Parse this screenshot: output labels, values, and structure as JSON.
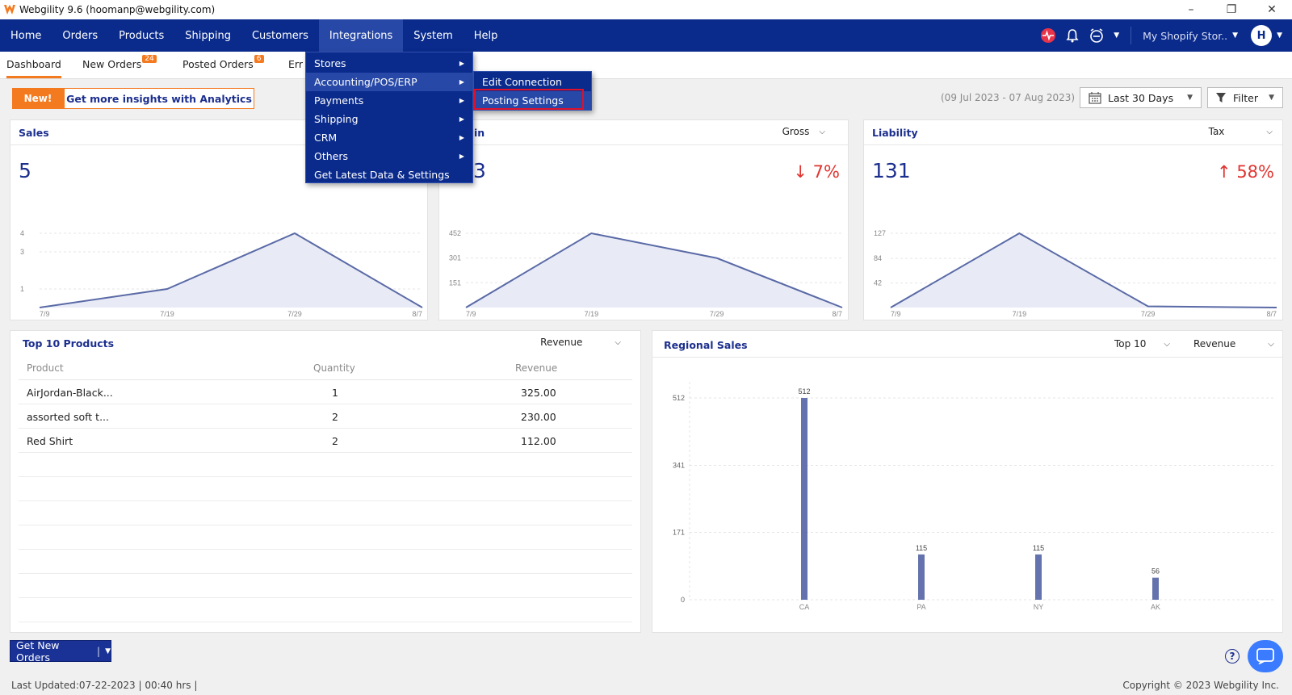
{
  "window": {
    "title": "Webgility 9.6 (hoomanp@webgility.com)"
  },
  "nav": {
    "items": [
      "Home",
      "Orders",
      "Products",
      "Shipping",
      "Customers",
      "Integrations",
      "System",
      "Help"
    ],
    "store": "My Shopify Stor..",
    "avatar": "H"
  },
  "tabs": {
    "dashboard": "Dashboard",
    "new_orders": "New Orders",
    "new_orders_count": "24",
    "posted_orders": "Posted Orders",
    "posted_orders_count": "6",
    "errors_partial": "Err"
  },
  "analytics": {
    "new_label": "New!",
    "promo": "Get more insights with Analytics"
  },
  "date_range": "(09 Jul 2023 - 07 Aug 2023)",
  "date_select": "Last 30 Days",
  "filter_label": "Filter",
  "cards": {
    "sales": {
      "title": "Sales",
      "value": "5",
      "yticks": [
        "4",
        "3",
        "1"
      ],
      "xticks": [
        "7/9",
        "7/19",
        "7/29",
        "8/7"
      ]
    },
    "gross": {
      "title_partial": "in",
      "select": "Gross",
      "value_partial": "3",
      "pct": "7%",
      "yticks": [
        "452",
        "301",
        "151"
      ],
      "xticks": [
        "7/9",
        "7/19",
        "7/29",
        "8/7"
      ]
    },
    "liability": {
      "title": "Liability",
      "select": "Tax",
      "value": "131",
      "pct": "58%",
      "yticks": [
        "127",
        "84",
        "42"
      ],
      "xticks": [
        "7/9",
        "7/19",
        "7/29",
        "8/7"
      ]
    }
  },
  "top_products": {
    "title": "Top 10 Products",
    "select": "Revenue",
    "headers": {
      "product": "Product",
      "quantity": "Quantity",
      "revenue": "Revenue"
    },
    "rows": [
      {
        "product": "AirJordan-Black...",
        "quantity": "1",
        "revenue": "325.00"
      },
      {
        "product": "assorted soft t...",
        "quantity": "2",
        "revenue": "230.00"
      },
      {
        "product": "Red Shirt",
        "quantity": "2",
        "revenue": "112.00"
      }
    ]
  },
  "regional": {
    "title": "Regional Sales",
    "select_top": "Top 10",
    "select_metric": "Revenue"
  },
  "chart_data": [
    {
      "type": "area",
      "x": [
        "7/9",
        "7/19",
        "7/29",
        "8/7"
      ],
      "values": [
        0,
        1,
        4,
        0
      ],
      "yticks": [
        1,
        3,
        4
      ]
    },
    {
      "type": "area",
      "x": [
        "7/9",
        "7/19",
        "7/29",
        "8/7"
      ],
      "values": [
        0,
        452,
        301,
        0
      ],
      "yticks": [
        151,
        301,
        452
      ]
    },
    {
      "type": "area",
      "x": [
        "7/9",
        "7/19",
        "7/29",
        "8/7"
      ],
      "values": [
        0,
        127,
        2,
        0
      ],
      "yticks": [
        42,
        84,
        127
      ]
    },
    {
      "type": "bar",
      "categories": [
        "CA",
        "PA",
        "NY",
        "AK"
      ],
      "values": [
        512,
        115,
        115,
        56
      ],
      "yticks": [
        0,
        171,
        341,
        512
      ],
      "ylim": [
        0,
        512
      ]
    }
  ],
  "bottom": {
    "get_new_orders": "Get New Orders",
    "status": "Last Updated:07-22-2023 | 00:40 hrs |",
    "copyright": "Copyright © 2023 Webgility Inc."
  },
  "menu": {
    "items": [
      "Stores",
      "Accounting/POS/ERP",
      "Payments",
      "Shipping",
      "CRM",
      "Others",
      "Get Latest Data & Settings"
    ],
    "submenu": [
      "Edit Connection",
      "Posting Settings"
    ]
  }
}
